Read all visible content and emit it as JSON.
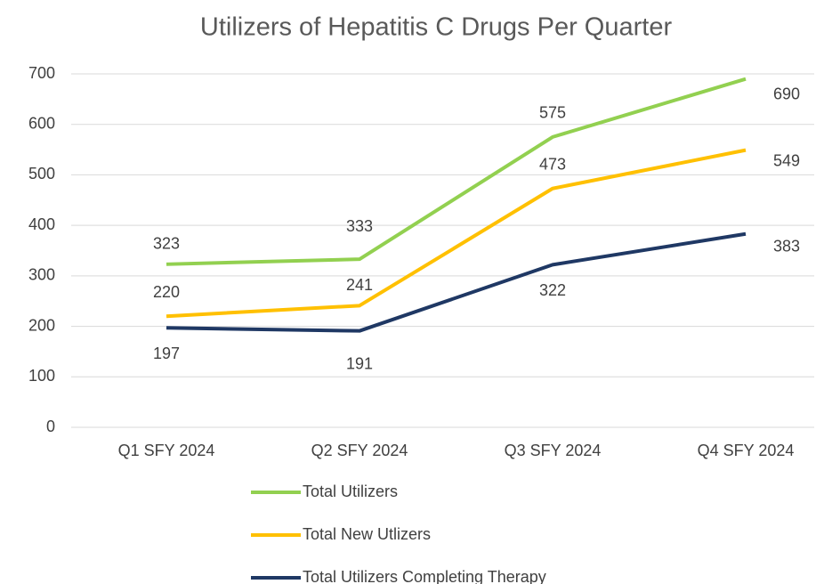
{
  "chart_data": {
    "type": "line",
    "title": "Utilizers of Hepatitis C Drugs Per Quarter",
    "categories": [
      "Q1 SFY 2024",
      "Q2 SFY 2024",
      "Q3 SFY 2024",
      "Q4 SFY 2024"
    ],
    "series": [
      {
        "name": "Total Utilizers",
        "color": "#92d050",
        "values": [
          323,
          333,
          575,
          690
        ]
      },
      {
        "name": "Total New Utlizers",
        "color": "#ffc000",
        "values": [
          220,
          241,
          473,
          549
        ]
      },
      {
        "name": "Total Utilizers Completing Therapy",
        "color": "#1f3864",
        "values": [
          197,
          191,
          322,
          383
        ]
      }
    ],
    "ylim": [
      0,
      700
    ],
    "yticks": [
      0,
      100,
      200,
      300,
      400,
      500,
      600,
      700
    ],
    "grid": true,
    "legend": "bottom"
  }
}
